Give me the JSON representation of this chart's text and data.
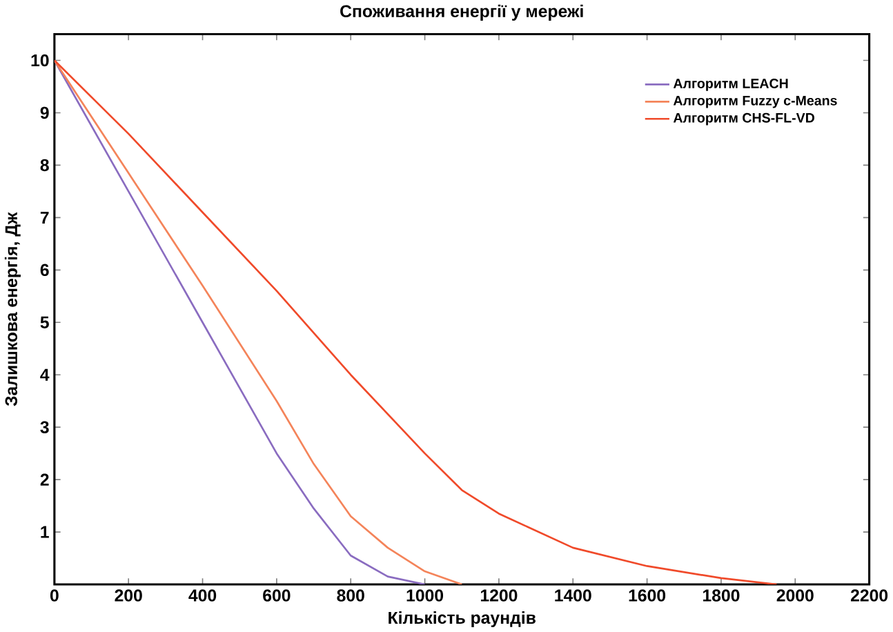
{
  "chart_data": {
    "type": "line",
    "title": "Споживання енергії у мережі",
    "xlabel": "Кількість раундів",
    "ylabel": "Залишкова енергія, Дж",
    "xlim": [
      0,
      2200
    ],
    "xticks": [
      0,
      200,
      400,
      600,
      800,
      1000,
      1200,
      1400,
      1600,
      1800,
      2000,
      2200
    ],
    "ylim": [
      0,
      10.5
    ],
    "yticks": [
      1,
      2,
      3,
      4,
      5,
      6,
      7,
      8,
      9,
      10
    ],
    "legend": "top right",
    "grid": false,
    "marker": "none",
    "line_style": "solid",
    "series": [
      {
        "name": "Алгоритм LEACH",
        "color": "#8a6cc0",
        "x": [
          0,
          200,
          400,
          600,
          700,
          800,
          900,
          1000
        ],
        "values": [
          10,
          7.5,
          5.0,
          2.5,
          1.45,
          0.55,
          0.15,
          0
        ]
      },
      {
        "name": "Алгоритм Fuzzy c-Means",
        "color": "#f4845a",
        "x": [
          0,
          200,
          400,
          600,
          700,
          800,
          900,
          1000,
          1100
        ],
        "values": [
          10,
          7.85,
          5.7,
          3.5,
          2.3,
          1.3,
          0.7,
          0.25,
          0
        ]
      },
      {
        "name": "Алгоритм CHS-FL-VD",
        "color": "#f04a2a",
        "x": [
          0,
          200,
          400,
          600,
          800,
          1000,
          1100,
          1200,
          1400,
          1600,
          1800,
          1950
        ],
        "values": [
          10,
          8.6,
          7.1,
          5.6,
          4.0,
          2.5,
          1.8,
          1.35,
          0.7,
          0.35,
          0.12,
          0
        ]
      }
    ]
  }
}
